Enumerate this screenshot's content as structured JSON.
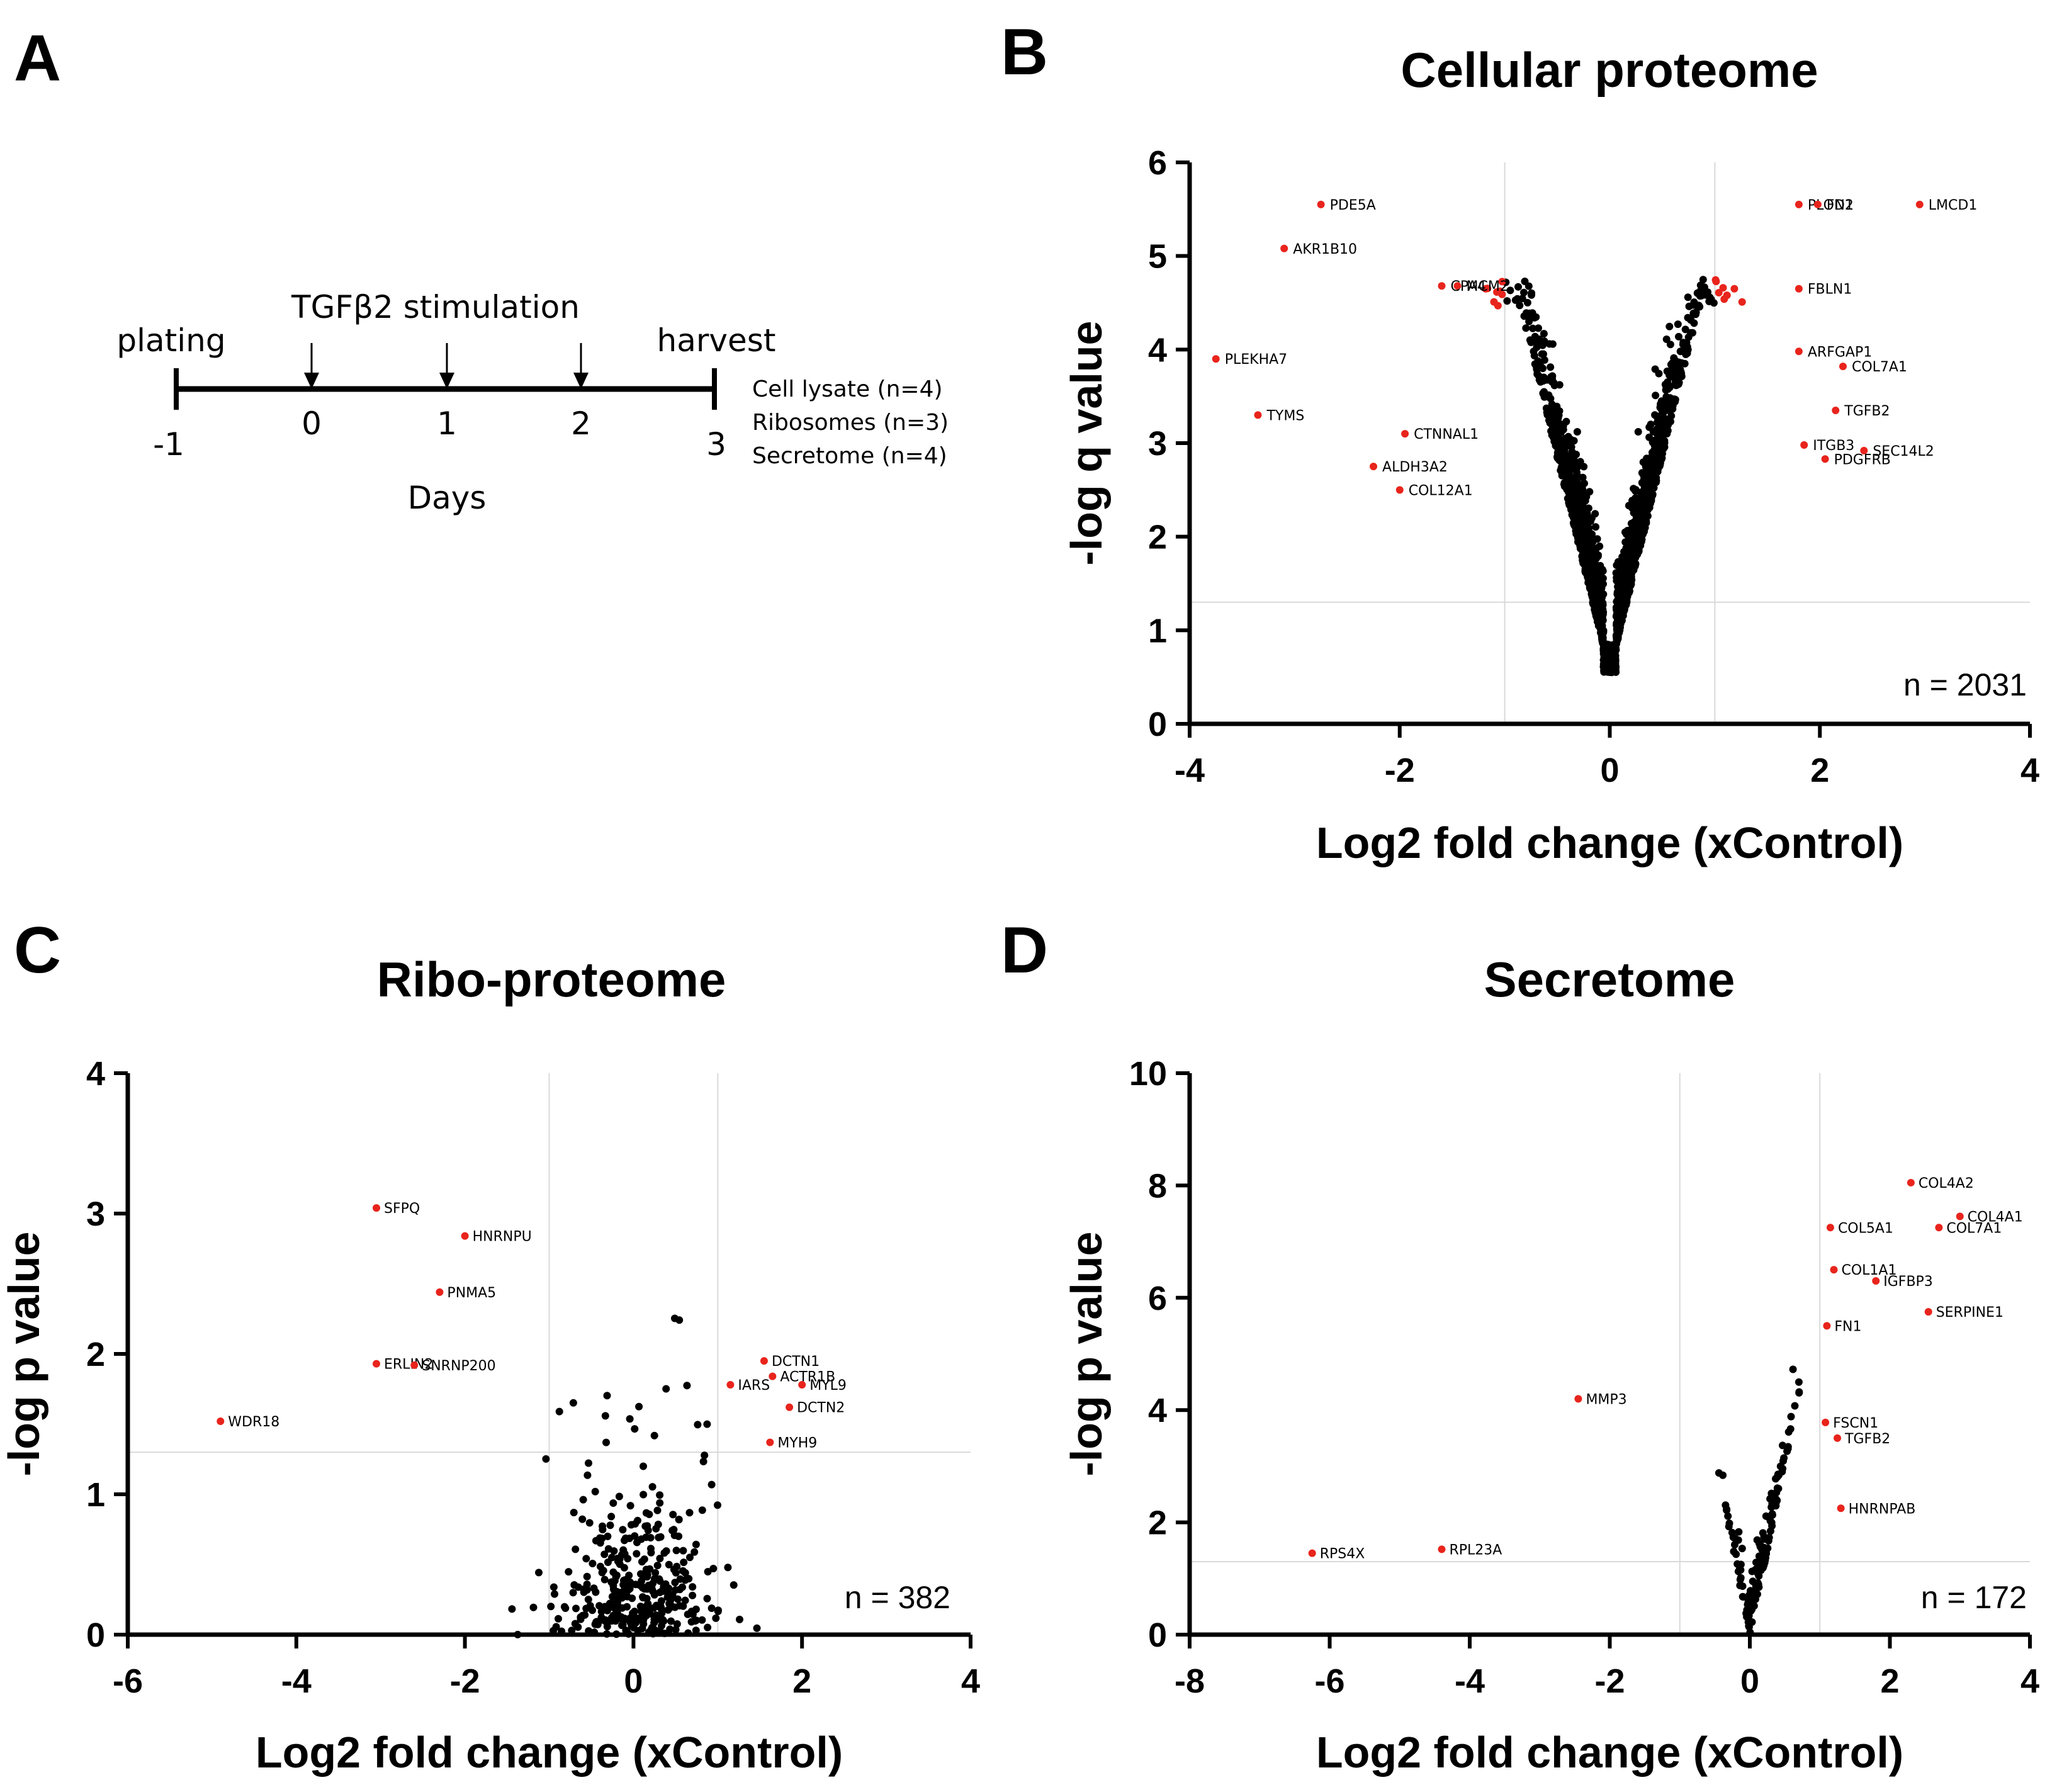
{
  "panel_labels": {
    "A": "A",
    "B": "B",
    "C": "C",
    "D": "D"
  },
  "timeline": {
    "stim_label": "TGFβ2 stimulation",
    "plating": "plating",
    "harvest": "harvest",
    "days_label": "Days",
    "ticks": [
      "-1",
      "0",
      "1",
      "2",
      "3"
    ],
    "samples": [
      "Cell lysate (n=4)",
      "Ribosomes (n=3)",
      "Secretome (n=4)"
    ]
  },
  "colors": {
    "significant": "#e8241c",
    "non_significant": "#000000",
    "axis": "#000000",
    "threshold": "#d9d9d9"
  },
  "chart_data": [
    {
      "id": "B",
      "type": "scatter",
      "title": "Cellular proteome",
      "xlabel": "Log2 fold change (xControl)",
      "ylabel": "-log q value",
      "xlim": [
        -4,
        4
      ],
      "ylim": [
        0,
        6
      ],
      "xticks": [
        "-4",
        "-2",
        "0",
        "2",
        "4"
      ],
      "yticks": [
        "0",
        "1",
        "2",
        "3",
        "4",
        "5",
        "6"
      ],
      "thresholds": {
        "x": [
          -1,
          1
        ],
        "y": 1.3
      },
      "n_label": "n = 2031",
      "bulk_points": 2031,
      "labeled_points": [
        {
          "label": "PDE5A",
          "x": -2.75,
          "y": 5.55
        },
        {
          "label": "AKR1B10",
          "x": -3.1,
          "y": 5.08
        },
        {
          "label": "MCM2",
          "x": -1.45,
          "y": 4.68
        },
        {
          "label": "CPA4",
          "x": -1.6,
          "y": 4.68
        },
        {
          "label": "PLEKHA7",
          "x": -3.75,
          "y": 3.9
        },
        {
          "label": "TYMS",
          "x": -3.35,
          "y": 3.3
        },
        {
          "label": "CTNNAL1",
          "x": -1.95,
          "y": 3.1
        },
        {
          "label": "ALDH3A2",
          "x": -2.25,
          "y": 2.75
        },
        {
          "label": "COL12A1",
          "x": -2.0,
          "y": 2.5
        },
        {
          "label": "PLOD2",
          "x": 1.8,
          "y": 5.55
        },
        {
          "label": "FN1",
          "x": 1.98,
          "y": 5.55
        },
        {
          "label": "LMCD1",
          "x": 2.95,
          "y": 5.55
        },
        {
          "label": "FBLN1",
          "x": 1.8,
          "y": 4.65
        },
        {
          "label": "ARFGAP1",
          "x": 1.8,
          "y": 3.98
        },
        {
          "label": "COL7A1",
          "x": 2.22,
          "y": 3.82
        },
        {
          "label": "TGFB2",
          "x": 2.15,
          "y": 3.35
        },
        {
          "label": "ITGB3",
          "x": 1.85,
          "y": 2.98
        },
        {
          "label": "SEC14L2",
          "x": 2.42,
          "y": 2.92
        },
        {
          "label": "PDGFRB",
          "x": 2.05,
          "y": 2.83
        }
      ]
    },
    {
      "id": "C",
      "type": "scatter",
      "title": "Ribo-proteome",
      "xlabel": "Log2 fold change (xControl)",
      "ylabel": "-log p value",
      "xlim": [
        -6,
        4
      ],
      "ylim": [
        0,
        4
      ],
      "xticks": [
        "-6",
        "-4",
        "-2",
        "0",
        "2",
        "4"
      ],
      "yticks": [
        "0",
        "1",
        "2",
        "3",
        "4"
      ],
      "thresholds": {
        "x": [
          -1,
          1
        ],
        "y": 1.3
      },
      "n_label": "n = 382",
      "bulk_points": 382,
      "labeled_points": [
        {
          "label": "SFPQ",
          "x": -3.05,
          "y": 3.04
        },
        {
          "label": "HNRNPU",
          "x": -2.0,
          "y": 2.84
        },
        {
          "label": "PNMA5",
          "x": -2.3,
          "y": 2.44
        },
        {
          "label": "ERLIN2",
          "x": -3.05,
          "y": 1.93
        },
        {
          "label": "SNRNP200",
          "x": -2.6,
          "y": 1.92
        },
        {
          "label": "WDR18",
          "x": -4.9,
          "y": 1.52
        },
        {
          "label": "DCTN1",
          "x": 1.55,
          "y": 1.95
        },
        {
          "label": "ACTR1B",
          "x": 1.65,
          "y": 1.84
        },
        {
          "label": "IARS",
          "x": 1.15,
          "y": 1.78
        },
        {
          "label": "MYL9",
          "x": 2.0,
          "y": 1.78
        },
        {
          "label": "DCTN2",
          "x": 1.85,
          "y": 1.62
        },
        {
          "label": "MYH9",
          "x": 1.62,
          "y": 1.37
        }
      ]
    },
    {
      "id": "D",
      "type": "scatter",
      "title": "Secretome",
      "xlabel": "Log2 fold change (xControl)",
      "ylabel": "-log p value",
      "xlim": [
        -8,
        4
      ],
      "ylim": [
        0,
        10
      ],
      "xticks": [
        "-8",
        "-6",
        "-4",
        "-2",
        "0",
        "2",
        "4"
      ],
      "yticks": [
        "0",
        "2",
        "4",
        "6",
        "8",
        "10"
      ],
      "thresholds": {
        "x": [
          -1,
          1
        ],
        "y": 1.3
      },
      "n_label": "n = 172",
      "bulk_points": 172,
      "labeled_points": [
        {
          "label": "COL4A2",
          "x": 2.3,
          "y": 8.05
        },
        {
          "label": "COL4A1",
          "x": 3.0,
          "y": 7.45
        },
        {
          "label": "COL7A1",
          "x": 2.7,
          "y": 7.25
        },
        {
          "label": "COL5A1",
          "x": 1.15,
          "y": 7.25
        },
        {
          "label": "COL1A1",
          "x": 1.2,
          "y": 6.5
        },
        {
          "label": "IGFBP3",
          "x": 1.8,
          "y": 6.3
        },
        {
          "label": "SERPINE1",
          "x": 2.55,
          "y": 5.75
        },
        {
          "label": "FN1",
          "x": 1.1,
          "y": 5.5
        },
        {
          "label": "MMP3",
          "x": -2.45,
          "y": 4.2
        },
        {
          "label": "FSCN1",
          "x": 1.08,
          "y": 3.78
        },
        {
          "label": "TGFB2",
          "x": 1.25,
          "y": 3.5
        },
        {
          "label": "HNRNPAB",
          "x": 1.3,
          "y": 2.25
        },
        {
          "label": "RPS4X",
          "x": -6.25,
          "y": 1.45
        },
        {
          "label": "RPL23A",
          "x": -4.4,
          "y": 1.52
        }
      ]
    }
  ]
}
